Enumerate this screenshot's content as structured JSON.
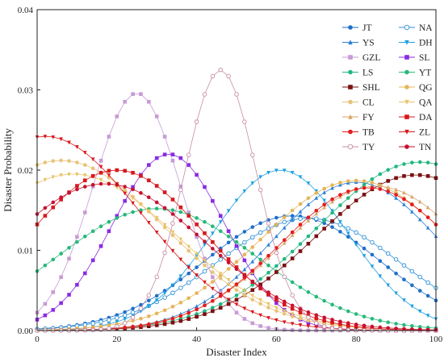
{
  "chart_data": {
    "type": "line",
    "xlabel": "Disaster Index",
    "ylabel": "Disaster Probability",
    "xlim": [
      0,
      100
    ],
    "ylim": [
      0,
      0.04
    ],
    "x_ticks": [
      0,
      20,
      40,
      60,
      80,
      100
    ],
    "y_ticks": [
      0.0,
      0.01,
      0.02,
      0.03,
      0.04
    ],
    "x_tick_labels": [
      "0",
      "20",
      "40",
      "60",
      "80",
      "100"
    ],
    "y_tick_labels": [
      "0.00",
      "0.01",
      "0.02",
      "0.03",
      "0.04"
    ],
    "legend_placement": "top-right",
    "grid": false,
    "x_step": 2,
    "series": [
      {
        "name": "JT",
        "color": "#1f6fc9",
        "marker": "circle",
        "model": {
          "mu": 64,
          "sigma": 22,
          "peak": 0.0143
        }
      },
      {
        "name": "NA",
        "color": "#2a8fd6",
        "marker": "circle-open",
        "model": {
          "mu": 68,
          "sigma": 23,
          "peak": 0.014
        }
      },
      {
        "name": "YS",
        "color": "#2c7fd6",
        "marker": "triangle-up",
        "model": {
          "mu": 80,
          "sigma": 21,
          "peak": 0.0185
        }
      },
      {
        "name": "DH",
        "color": "#1fa0e0",
        "marker": "triangle-down",
        "model": {
          "mu": 61,
          "sigma": 17,
          "peak": 0.02
        }
      },
      {
        "name": "GZL",
        "color": "#c79bd6",
        "marker": "square",
        "model": {
          "mu": 25,
          "sigma": 11,
          "peak": 0.0296
        }
      },
      {
        "name": "SL",
        "color": "#8a2be2",
        "marker": "square",
        "model": {
          "mu": 33,
          "sigma": 14,
          "peak": 0.022
        }
      },
      {
        "name": "LS",
        "color": "#20b880",
        "marker": "circle",
        "model": {
          "mu": 96,
          "sigma": 26,
          "peak": 0.021
        }
      },
      {
        "name": "YT",
        "color": "#27b87a",
        "marker": "circle",
        "model": {
          "mu": 30,
          "sigma": 25,
          "peak": 0.0152
        }
      },
      {
        "name": "SHL",
        "color": "#7a1010",
        "marker": "square",
        "model": {
          "mu": 95,
          "sigma": 25,
          "peak": 0.0194
        }
      },
      {
        "name": "QG",
        "color": "#e5b55a",
        "marker": "circle",
        "model": {
          "mu": 80,
          "sigma": 24,
          "peak": 0.0187
        }
      },
      {
        "name": "CL",
        "color": "#e8c27a",
        "marker": "circle",
        "model": {
          "mu": 6,
          "sigma": 26,
          "peak": 0.0212
        }
      },
      {
        "name": "QA",
        "color": "#e9c46a",
        "marker": "triangle-down",
        "model": {
          "mu": 9,
          "sigma": 26,
          "peak": 0.0195
        }
      },
      {
        "name": "FY",
        "color": "#d9a66a",
        "marker": "triangle-up",
        "model": {
          "mu": 85,
          "sigma": 23,
          "peak": 0.018
        }
      },
      {
        "name": "DA",
        "color": "#d7191c",
        "marker": "square",
        "model": {
          "mu": 20,
          "sigma": 22,
          "peak": 0.02
        }
      },
      {
        "name": "TB",
        "color": "#e41a1c",
        "marker": "circle",
        "model": {
          "mu": 83,
          "sigma": 22,
          "peak": 0.0178
        }
      },
      {
        "name": "ZL",
        "color": "#d7191c",
        "marker": "triangle-down",
        "model": {
          "mu": 2,
          "sigma": 24,
          "peak": 0.0242
        }
      },
      {
        "name": "TY",
        "color": "#c78ca6",
        "marker": "circle-open",
        "model": {
          "mu": 46,
          "sigma": 9,
          "peak": 0.0325
        }
      },
      {
        "name": "TN",
        "color": "#c8102e",
        "marker": "circle",
        "model": {
          "mu": 17,
          "sigma": 25,
          "peak": 0.0183
        }
      }
    ]
  }
}
